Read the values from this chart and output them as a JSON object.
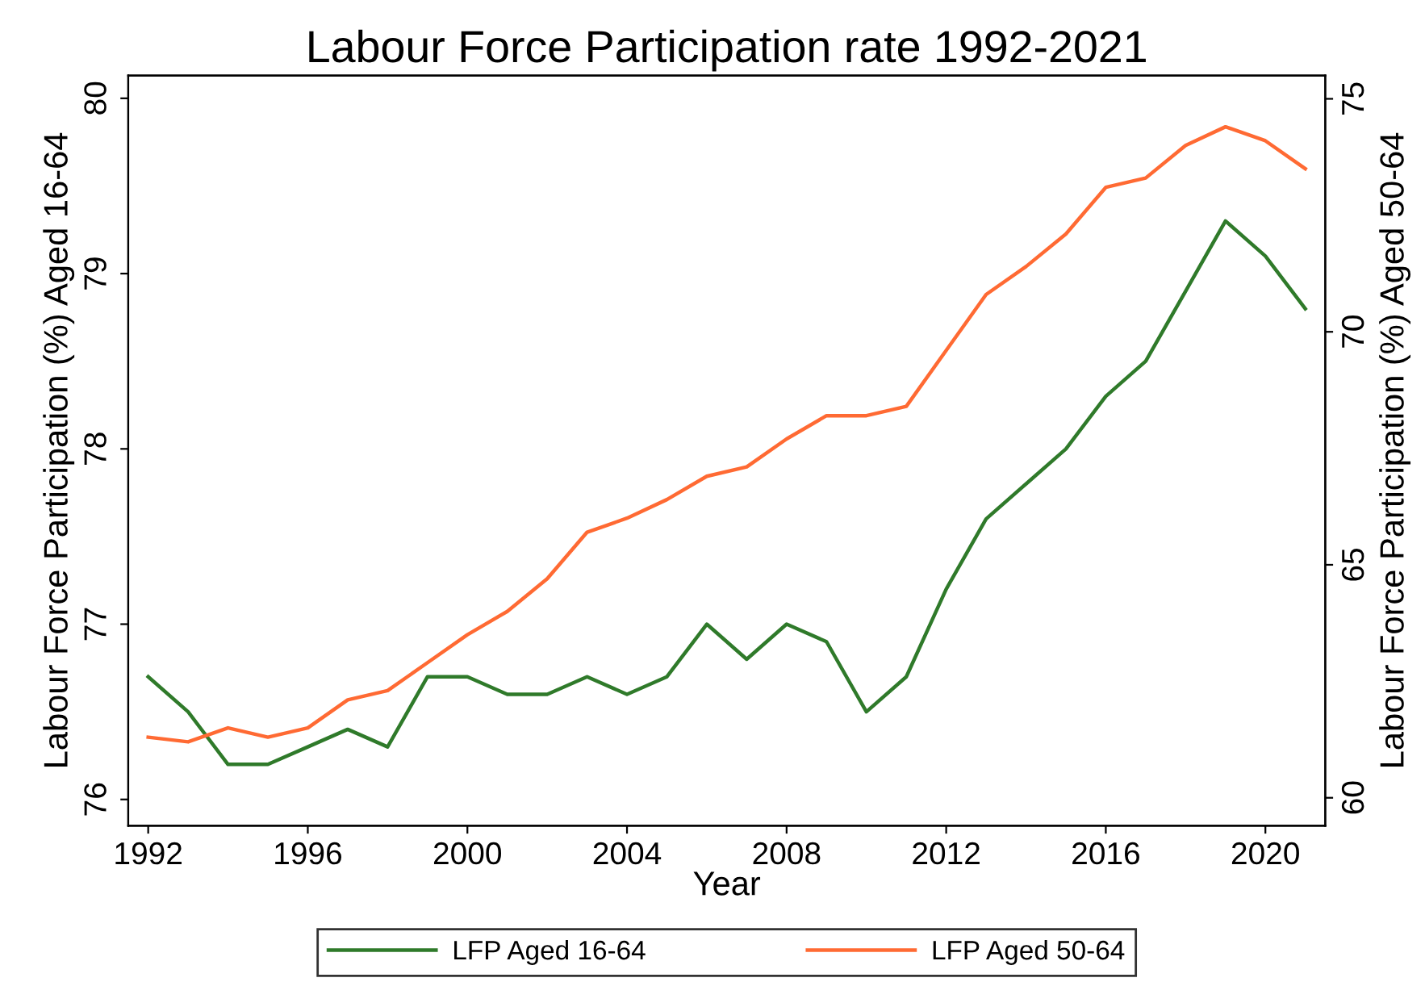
{
  "chart_data": {
    "type": "line",
    "title": "Labour Force Participation rate 1992-2021",
    "xlabel": "Year",
    "ylabel": "Labour Force Participation (%) Aged 16-64",
    "y2label": "Labour Force Participation (%) Aged 50-64",
    "x": [
      1992,
      1993,
      1994,
      1995,
      1996,
      1997,
      1998,
      1999,
      2000,
      2001,
      2002,
      2003,
      2004,
      2005,
      2006,
      2007,
      2008,
      2009,
      2010,
      2011,
      2012,
      2013,
      2014,
      2015,
      2016,
      2017,
      2018,
      2019,
      2020,
      2021
    ],
    "series": [
      {
        "name": "LFP Aged 16-64",
        "color": "#2f7a2a",
        "values": [
          76.7,
          76.5,
          76.2,
          76.2,
          76.3,
          76.4,
          76.3,
          76.7,
          76.7,
          76.6,
          76.6,
          76.7,
          76.6,
          76.7,
          77.0,
          76.8,
          77.0,
          76.9,
          76.5,
          76.7,
          77.2,
          77.6,
          77.8,
          78.0,
          78.3,
          78.5,
          78.9,
          79.3,
          79.1,
          78.8
        ]
      },
      {
        "name": "LFP Aged 50-64",
        "color": "#ff6a33",
        "axis": "y2",
        "values": [
          61.3,
          61.2,
          61.5,
          61.3,
          61.5,
          62.1,
          62.3,
          62.9,
          63.5,
          64.0,
          64.7,
          65.7,
          66.0,
          66.4,
          66.9,
          67.1,
          67.7,
          68.2,
          68.2,
          68.4,
          69.6,
          70.8,
          71.4,
          72.1,
          73.1,
          73.3,
          74.0,
          74.4,
          74.1,
          73.5
        ]
      }
    ],
    "xlim": [
      1991.5,
      2021.5
    ],
    "xticks": [
      1992,
      1996,
      2000,
      2004,
      2008,
      2012,
      2016,
      2020
    ],
    "ylim": [
      75.85,
      80.13
    ],
    "yticks": [
      76,
      77,
      78,
      79,
      80
    ],
    "y2lim": [
      59.4,
      75.5
    ],
    "y2ticks": [
      60,
      65,
      70,
      75
    ],
    "grid": false,
    "legend": "bottom",
    "marker": "none",
    "line_style": "solid"
  }
}
